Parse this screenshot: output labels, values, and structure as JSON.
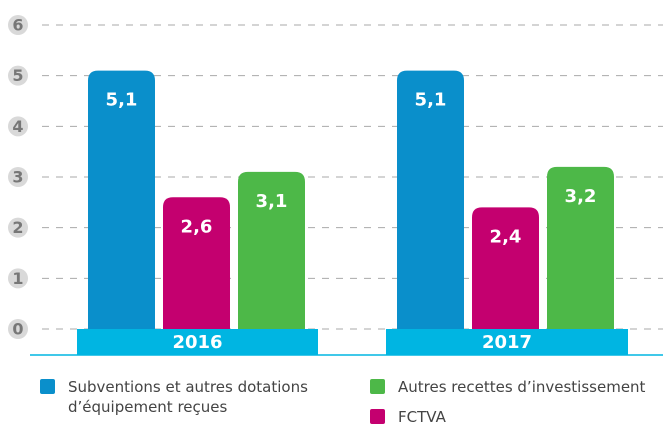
{
  "chart_data": {
    "type": "bar",
    "categories": [
      "2016",
      "2017"
    ],
    "series": [
      {
        "name": "Subventions et autres dotations d’équipement reçues",
        "color": "#0a8fcb",
        "values": [
          5.1,
          5.1
        ],
        "value_labels": [
          "5,1",
          "5,1"
        ]
      },
      {
        "name": "FCTVA",
        "color": "#c4006f",
        "values": [
          2.6,
          2.4
        ],
        "value_labels": [
          "2,6",
          "2,4"
        ]
      },
      {
        "name": "Autres recettes d’investissement",
        "color": "#4db848",
        "values": [
          3.1,
          3.2
        ],
        "value_labels": [
          "3,1",
          "3,2"
        ]
      }
    ],
    "category_color": "#00b5e2",
    "ylim": [
      0,
      6
    ],
    "yticks": [
      0,
      1,
      2,
      3,
      4,
      5,
      6
    ],
    "grid": true
  }
}
